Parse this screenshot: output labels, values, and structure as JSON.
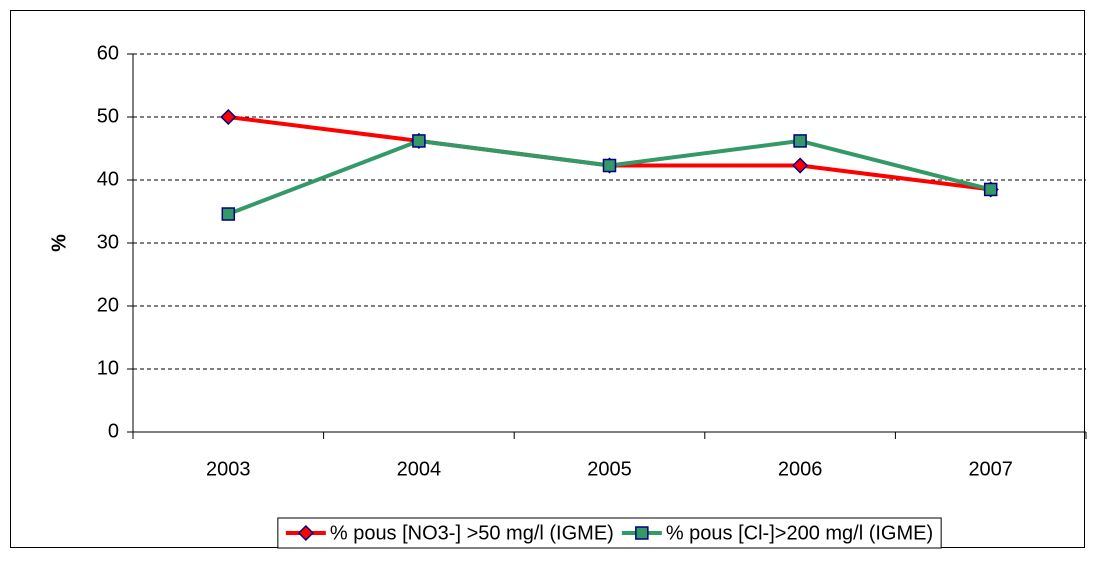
{
  "chart_data": {
    "type": "line",
    "categories": [
      "2003",
      "2004",
      "2005",
      "2006",
      "2007"
    ],
    "y_label": "%",
    "series": [
      {
        "name": "% pous [NO3-] >50 mg/l (IGME)",
        "color": "#ff0000",
        "marker": "diamond",
        "values": [
          50,
          46.2,
          42.3,
          42.3,
          38.5
        ]
      },
      {
        "name": "% pous [Cl-]>200 mg/l (IGME)",
        "color": "#339966",
        "marker": "square",
        "values": [
          34.6,
          46.2,
          42.3,
          46.2,
          38.5
        ]
      }
    ],
    "ylim": [
      0,
      60
    ],
    "yticks": [
      0,
      10,
      20,
      30,
      40,
      50,
      60
    ],
    "grid": true,
    "legend": "bottom"
  }
}
